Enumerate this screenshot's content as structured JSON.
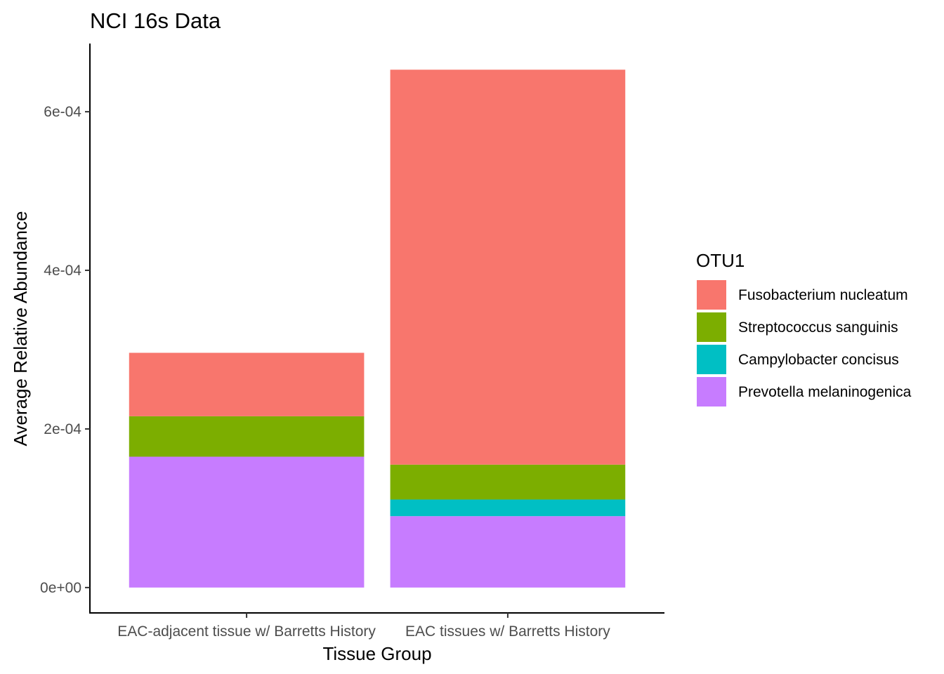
{
  "chart_data": {
    "type": "bar",
    "stacked": true,
    "title": "NCI 16s Data",
    "xlabel": "Tissue Group",
    "ylabel": "Average Relative Abundance",
    "categories": [
      "EAC-adjacent tissue w/ Barretts History",
      "EAC tissues w/ Barretts History"
    ],
    "yticks": [
      {
        "value": 0,
        "label": "0e+00"
      },
      {
        "value": 0.0002,
        "label": "2e-04"
      },
      {
        "value": 0.0004,
        "label": "4e-04"
      },
      {
        "value": 0.0006,
        "label": "6e-04"
      }
    ],
    "ylim": [
      -3.2e-05,
      0.000686
    ],
    "legend": {
      "title": "OTU1",
      "position": "right"
    },
    "series": [
      {
        "name": "Fusobacterium nucleatum",
        "color": "#F8766D",
        "values": [
          8e-05,
          0.000498
        ]
      },
      {
        "name": "Streptococcus sanguinis",
        "color": "#7CAE00",
        "values": [
          5.1e-05,
          4.4e-05
        ]
      },
      {
        "name": "Campylobacter concisus",
        "color": "#00BFC4",
        "values": [
          0,
          2.1e-05
        ]
      },
      {
        "name": "Prevotella melaninogenica",
        "color": "#C77CFF",
        "values": [
          0.000165,
          9e-05
        ]
      }
    ],
    "stack_order_bottom_to_top": [
      "Prevotella melaninogenica",
      "Campylobacter concisus",
      "Streptococcus sanguinis",
      "Fusobacterium nucleatum"
    ],
    "grid": false
  }
}
